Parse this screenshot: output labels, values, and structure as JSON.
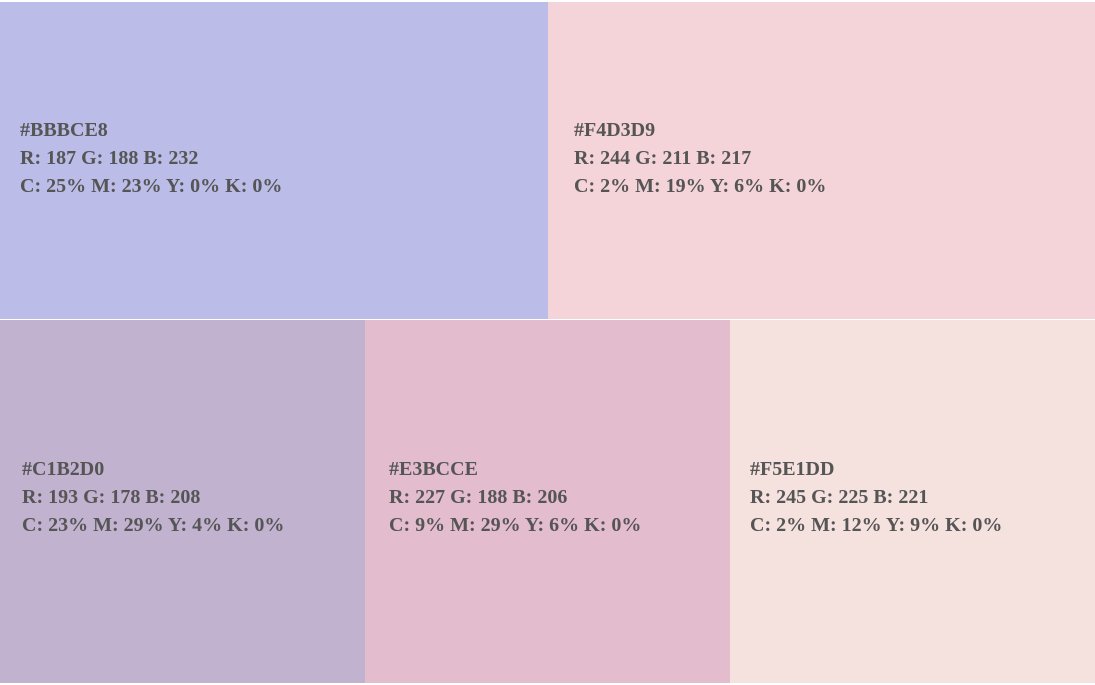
{
  "swatches": [
    {
      "hex": "#BBBCE8",
      "rgb": "R: 187 G: 188 B: 232",
      "cmyk": "C: 25% M: 23% Y: 0% K: 0%",
      "color": "#BBBCE8"
    },
    {
      "hex": "#F4D3D9",
      "rgb": "R: 244 G: 211 B: 217",
      "cmyk": "C: 2% M: 19% Y: 6% K: 0%",
      "color": "#F4D3D9"
    },
    {
      "hex": "#C1B2D0",
      "rgb": "R: 193 G: 178 B: 208",
      "cmyk": "C: 23% M: 29% Y: 4% K: 0%",
      "color": "#C1B2D0"
    },
    {
      "hex": "#E3BCCE",
      "rgb": "R: 227 G: 188 B: 206",
      "cmyk": "C: 9% M: 29% Y: 6% K: 0%",
      "color": "#E3BCCE"
    },
    {
      "hex": "#F5E1DD",
      "rgb": "R: 245 G: 225 B: 221",
      "cmyk": "C: 2% M: 12% Y: 9% K: 0%",
      "color": "#F5E1DD"
    }
  ]
}
